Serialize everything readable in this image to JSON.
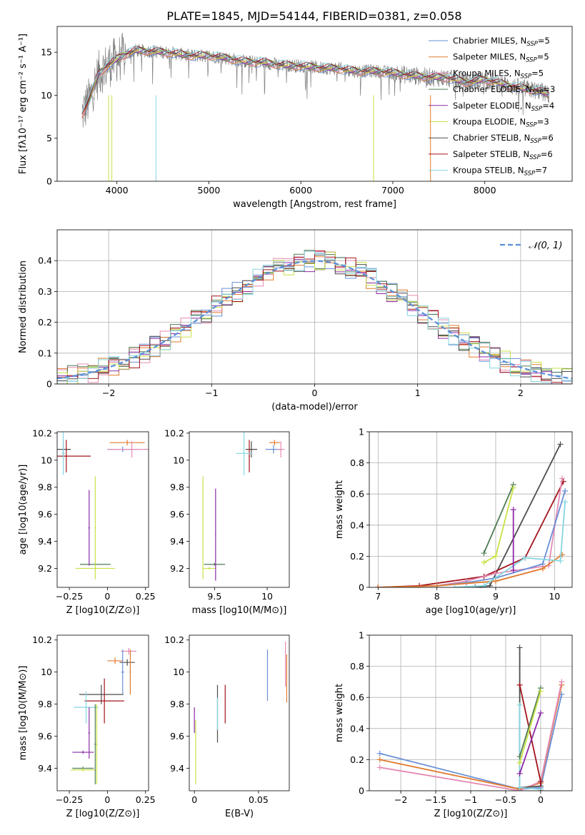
{
  "colors": {
    "blue": "#6a8fd6",
    "orange": "#e07b2e",
    "pink": "#e58ab5",
    "dgreen": "#4e7c53",
    "purple": "#8b2aa6",
    "yellow": "#c9e246",
    "dgray": "#4d4d4d",
    "red": "#a3141c",
    "cyan": "#86d6e0",
    "spectrum": "#808080"
  },
  "page": {
    "title": "PLATE=1845, MJD=54144, FIBERID=0381, z=0.058"
  },
  "chart_data": [
    {
      "id": "spectrum",
      "type": "line",
      "xlabel": "wavelength [Angstrom, rest frame]",
      "ylabel": "Flux [fλ10⁻¹⁷ erg cm⁻² s⁻¹ A⁻¹]",
      "xlim": [
        3350,
        8950
      ],
      "ylim": [
        0,
        18
      ],
      "xticks": [
        4000,
        5000,
        6000,
        7000,
        8000
      ],
      "yticks": [
        0,
        5,
        10,
        15
      ],
      "continuum": {
        "x": [
          3620,
          3700,
          3800,
          3900,
          4000,
          4100,
          4200,
          4400,
          4600,
          4800,
          5000,
          5200,
          5400,
          5600,
          5800,
          6000,
          6200,
          6400,
          6600,
          6800,
          7000,
          7200,
          7400,
          7600,
          7800,
          8000,
          8200,
          8400,
          8600,
          8700
        ],
        "y": [
          7.8,
          9.5,
          12.5,
          13.5,
          14.2,
          14.8,
          15.2,
          15.1,
          14.9,
          14.6,
          14.6,
          14.3,
          13.9,
          13.8,
          13.5,
          13.4,
          13.2,
          13.1,
          12.8,
          12.8,
          12.6,
          12.3,
          12.1,
          12.0,
          11.5,
          11.8,
          11.3,
          10.8,
          10.5,
          10.0
        ]
      },
      "series": [
        {
          "name": "Chabrier MILES, N_SSP=5",
          "color": "blue"
        },
        {
          "name": "Salpeter MILES, N_SSP=5",
          "color": "orange"
        },
        {
          "name": "Kroupa MILES, N_SSP=5",
          "color": "pink"
        },
        {
          "name": "Chabrier ELODIE, N_SSP=3",
          "color": "dgreen"
        },
        {
          "name": "Salpeter ELODIE, N_SSP=4",
          "color": "purple"
        },
        {
          "name": "Kroupa ELODIE, N_SSP=3",
          "color": "yellow"
        },
        {
          "name": "Chabrier STELIB, N_SSP=6",
          "color": "dgray"
        },
        {
          "name": "Salpeter STELIB, N_SSP=6",
          "color": "red"
        },
        {
          "name": "Kroupa STELIB, N_SSP=7",
          "color": "cyan"
        }
      ]
    },
    {
      "id": "residuals",
      "type": "line",
      "xlabel": "(data-model)/error",
      "ylabel": "Normed distribution",
      "xlim": [
        -2.5,
        2.5
      ],
      "ylim": [
        0,
        0.5
      ],
      "xticks": [
        -2,
        -1,
        0,
        1,
        2
      ],
      "yticks": [
        0.0,
        0.1,
        0.2,
        0.3,
        0.4
      ],
      "legend": "N(0,1)",
      "legend_position": "top-right",
      "grid": true
    },
    {
      "id": "age-vs-Z",
      "type": "scatter",
      "xlabel": "Z [log10(Z/Z⊙)]",
      "ylabel": "age  [log10(age/yr)]",
      "xlim": [
        -0.33,
        0.27
      ],
      "ylim": [
        9.06,
        10.21
      ],
      "xticks": [
        -0.25,
        0.0,
        0.25
      ],
      "yticks": [
        9.2,
        9.4,
        9.6,
        9.8,
        10.0,
        10.2
      ],
      "points": [
        {
          "c": "blue",
          "x": 0.1,
          "xe": 0.2,
          "y": 10.08,
          "ye": 0.02
        },
        {
          "c": "orange",
          "x": 0.13,
          "xe": 0.23,
          "y": 10.13,
          "ye": 0.02
        },
        {
          "c": "pink",
          "x": 0.16,
          "xe": 0.31,
          "y": 10.08,
          "ye": 0.06
        },
        {
          "c": "dgray",
          "x": -0.29,
          "xe": 0.1,
          "y": 10.08,
          "ye": 0.06
        },
        {
          "c": "red",
          "x": -0.27,
          "xe": 0.32,
          "y": 10.03,
          "ye": 0.12
        },
        {
          "c": "cyan",
          "x": -0.29,
          "xe": 0.02,
          "y": 10.05,
          "ye": 0.16
        },
        {
          "c": "dgreen",
          "x": -0.08,
          "xe": 0.2,
          "y": 9.23,
          "ye": 0.01
        },
        {
          "c": "yellow",
          "x": -0.08,
          "xe": 0.26,
          "y": 9.2,
          "ye": 0.01
        },
        {
          "c": "purple",
          "x": -0.12,
          "xe": 0.01,
          "y": 9.5,
          "ye": 0.28
        },
        {
          "c": "yellow",
          "x": -0.08,
          "xe": 0.01,
          "y": 9.5,
          "ye": 0.38
        }
      ]
    },
    {
      "id": "age-vs-mass",
      "type": "scatter",
      "xlabel": "mass [log10(M/M⊙)]",
      "ylabel": "",
      "xlim": [
        9.26,
        10.21
      ],
      "ylim": [
        9.06,
        10.21
      ],
      "xticks": [
        9.5,
        10.0
      ],
      "yticks": [
        9.2,
        9.4,
        9.6,
        9.8,
        10.0,
        10.2
      ],
      "points": [
        {
          "c": "blue",
          "x": 10.06,
          "xe": 0.15,
          "y": 10.08,
          "ye": 0.03
        },
        {
          "c": "orange",
          "x": 10.07,
          "xe": 0.1,
          "y": 10.13,
          "ye": 0.02
        },
        {
          "c": "pink",
          "x": 10.13,
          "xe": 0.07,
          "y": 10.08,
          "ye": 0.06
        },
        {
          "c": "dgray",
          "x": 9.85,
          "xe": 0.11,
          "y": 10.08,
          "ye": 0.06
        },
        {
          "c": "red",
          "x": 9.83,
          "xe": 0.01,
          "y": 10.03,
          "ye": 0.12
        },
        {
          "c": "cyan",
          "x": 9.78,
          "xe": 0.15,
          "y": 10.05,
          "ye": 0.16
        },
        {
          "c": "dgreen",
          "x": 9.5,
          "xe": 0.2,
          "y": 9.23,
          "ye": 0.01
        },
        {
          "c": "yellow",
          "x": 9.45,
          "xe": 0.12,
          "y": 9.2,
          "ye": 0.01
        },
        {
          "c": "purple",
          "x": 9.51,
          "xe": 0.01,
          "y": 9.45,
          "ye": 0.34
        },
        {
          "c": "yellow",
          "x": 9.39,
          "xe": 0.01,
          "y": 9.5,
          "ye": 0.38
        }
      ]
    },
    {
      "id": "massweight-vs-age",
      "type": "line",
      "xlabel": "age  [log10(age/yr)]",
      "ylabel": "mass weight",
      "xlim": [
        6.85,
        10.3
      ],
      "ylim": [
        0,
        1
      ],
      "xticks": [
        7,
        8,
        9,
        10
      ],
      "yticks": [
        0.0,
        0.2,
        0.4,
        0.6,
        0.8,
        1.0
      ],
      "grid": true,
      "series": [
        {
          "c": "dgray",
          "x": [
            8.65,
            8.9,
            10.1
          ],
          "y": [
            0.0,
            0.01,
            0.92
          ]
        },
        {
          "c": "red",
          "x": [
            7.0,
            7.7,
            8.8,
            9.5,
            10.15
          ],
          "y": [
            0.0,
            0.01,
            0.07,
            0.19,
            0.68
          ]
        },
        {
          "c": "pink",
          "x": [
            8.0,
            8.5,
            9.0,
            9.9,
            10.13
          ],
          "y": [
            0.01,
            0.04,
            0.09,
            0.14,
            0.7
          ]
        },
        {
          "c": "blue",
          "x": [
            8.0,
            8.5,
            9.0,
            9.8,
            10.18
          ],
          "y": [
            0.01,
            0.03,
            0.06,
            0.15,
            0.62
          ]
        },
        {
          "c": "orange",
          "x": [
            7.0,
            8.0,
            9.0,
            9.8,
            10.13
          ],
          "y": [
            0.0,
            0.01,
            0.04,
            0.12,
            0.21
          ]
        },
        {
          "c": "cyan",
          "x": [
            8.3,
            8.8,
            9.5,
            10.1,
            10.18
          ],
          "y": [
            0.0,
            0.01,
            0.19,
            0.17,
            0.55
          ]
        },
        {
          "c": "dgreen",
          "x": [
            8.8,
            9.3
          ],
          "y": [
            0.22,
            0.66
          ]
        },
        {
          "c": "yellow",
          "x": [
            8.8,
            9.0,
            9.3
          ],
          "y": [
            0.16,
            0.2,
            0.64
          ]
        },
        {
          "c": "purple",
          "x": [
            9.3,
            9.3
          ],
          "y": [
            0.11,
            0.5
          ]
        }
      ]
    },
    {
      "id": "mass-vs-Z",
      "type": "scatter",
      "xlabel": "Z [log10(Z/Z⊙)]",
      "ylabel": "mass [log10(M/M⊙)]",
      "xlim": [
        -0.33,
        0.27
      ],
      "ylim": [
        9.26,
        10.23
      ],
      "xticks": [
        -0.25,
        0.0,
        0.25
      ],
      "yticks": [
        9.4,
        9.6,
        9.8,
        10.0,
        10.2
      ],
      "points": [
        {
          "c": "pink",
          "x": 0.14,
          "xe": 0.1,
          "y": 10.13,
          "ye": 0.02
        },
        {
          "c": "orange",
          "x": 0.05,
          "xe": 0.1,
          "y": 10.07,
          "ye": 0.02
        },
        {
          "c": "dgray",
          "x": 0.13,
          "xe": 0.1,
          "y": 10.06,
          "ye": 0.02
        },
        {
          "c": "blue",
          "x": 0.1,
          "xe": 0.02,
          "y": 10.0,
          "ye": 0.14
        },
        {
          "c": "orange",
          "x": 0.15,
          "xe": 0.01,
          "y": 10.0,
          "ye": 0.14
        },
        {
          "c": "dgray",
          "x": -0.04,
          "xe": 0.29,
          "y": 9.86,
          "ye": 0.06
        },
        {
          "c": "red",
          "x": -0.02,
          "xe": 0.26,
          "y": 9.82,
          "ye": 0.14
        },
        {
          "c": "cyan",
          "x": -0.14,
          "xe": 0.16,
          "y": 9.78,
          "ye": 0.1
        },
        {
          "c": "purple",
          "x": -0.16,
          "xe": 0.14,
          "y": 9.5,
          "ye": 0.01
        },
        {
          "c": "purple",
          "x": -0.12,
          "xe": 0.01,
          "y": 9.62,
          "ye": 0.16
        },
        {
          "c": "dgreen",
          "x": -0.16,
          "xe": 0.14,
          "y": 9.4,
          "ye": 0.01
        },
        {
          "c": "yellow",
          "x": -0.16,
          "xe": 0.16,
          "y": 9.39,
          "ye": 0.01
        },
        {
          "c": "dgreen",
          "x": -0.08,
          "xe": 0.01,
          "y": 9.55,
          "ye": 0.25
        },
        {
          "c": "yellow",
          "x": -0.07,
          "xe": 0.01,
          "y": 9.55,
          "ye": 0.25
        }
      ]
    },
    {
      "id": "mass-vs-EBV",
      "type": "scatter",
      "xlabel": "E(B-V)",
      "ylabel": "",
      "xlim": [
        -0.004,
        0.074
      ],
      "ylim": [
        9.26,
        10.23
      ],
      "xticks": [
        0.0,
        0.05
      ],
      "yticks": [
        9.4,
        9.6,
        9.8,
        10.0,
        10.2
      ],
      "points": [
        {
          "c": "purple",
          "x": 0.0,
          "y": 9.7,
          "ye": 0.08
        },
        {
          "c": "yellow",
          "x": 0.001,
          "y": 9.5,
          "ye": 0.2
        },
        {
          "c": "dgray",
          "x": 0.018,
          "y": 9.74,
          "ye": 0.18
        },
        {
          "c": "cyan",
          "x": 0.018,
          "y": 9.74,
          "ye": 0.1
        },
        {
          "c": "red",
          "x": 0.024,
          "y": 9.8,
          "ye": 0.12
        },
        {
          "c": "blue",
          "x": 0.057,
          "y": 9.98,
          "ye": 0.16
        },
        {
          "c": "pink",
          "x": 0.071,
          "y": 10.05,
          "ye": 0.14
        },
        {
          "c": "orange",
          "x": 0.072,
          "y": 9.96,
          "ye": 0.15
        }
      ]
    },
    {
      "id": "massweight-vs-Z",
      "type": "line",
      "xlabel": "Z [log10(Z/Z⊙)]",
      "ylabel": "mass weight",
      "xlim": [
        -2.45,
        0.45
      ],
      "ylim": [
        0,
        1
      ],
      "xticks": [
        -2.0,
        -1.5,
        -1.0,
        -0.5,
        0.0
      ],
      "yticks": [
        0.0,
        0.2,
        0.4,
        0.6,
        0.8,
        1.0
      ],
      "grid": true,
      "series": [
        {
          "c": "blue",
          "x": [
            -2.3,
            -0.3,
            0.0,
            0.3
          ],
          "y": [
            0.24,
            0.01,
            0.02,
            0.62
          ]
        },
        {
          "c": "orange",
          "x": [
            -2.3,
            -0.3,
            0.0,
            0.3
          ],
          "y": [
            0.2,
            0.01,
            0.05,
            0.68
          ]
        },
        {
          "c": "pink",
          "x": [
            -2.3,
            -0.3,
            0.0,
            0.3
          ],
          "y": [
            0.15,
            0.0,
            0.06,
            0.7
          ]
        },
        {
          "c": "dgray",
          "x": [
            -0.3,
            -0.3,
            0.0
          ],
          "y": [
            0.92,
            0.02,
            0.03
          ]
        },
        {
          "c": "red",
          "x": [
            -0.3,
            0.0,
            0.0
          ],
          "y": [
            0.68,
            0.06,
            0.0
          ]
        },
        {
          "c": "cyan",
          "x": [
            -0.3,
            -0.3,
            0.0
          ],
          "y": [
            0.55,
            0.02,
            0.01
          ]
        },
        {
          "c": "dgreen",
          "x": [
            -0.3,
            0.0
          ],
          "y": [
            0.22,
            0.66
          ]
        },
        {
          "c": "yellow",
          "x": [
            -0.3,
            0.0
          ],
          "y": [
            0.18,
            0.64
          ]
        },
        {
          "c": "purple",
          "x": [
            -0.3,
            0.0
          ],
          "y": [
            0.11,
            0.5
          ]
        }
      ]
    }
  ]
}
